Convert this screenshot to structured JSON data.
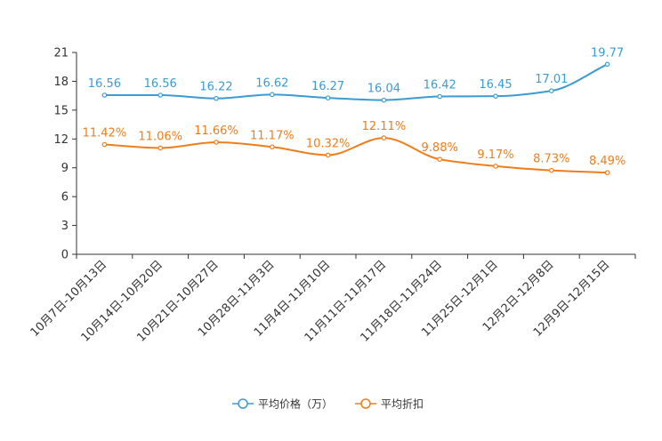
{
  "chart_data": {
    "type": "line",
    "title": "",
    "xlabel": "",
    "ylabel": "",
    "ylim": [
      0,
      21
    ],
    "yticks": [
      "0",
      "3",
      "6",
      "9",
      "12",
      "15",
      "18",
      "21"
    ],
    "categories": [
      "10月7日-10月13日",
      "10月14日-10月20日",
      "10月21日-10月27日",
      "10月28日-11月3日",
      "11月4日-11月10日",
      "11月11日-11月17日",
      "11月18日-11月24日",
      "11月25日-12月1日",
      "12月2日-12月8日",
      "12月9日-12月15日"
    ],
    "series": [
      {
        "name": "平均价格（万）",
        "color": "#3a9bd5",
        "values": [
          16.56,
          16.56,
          16.22,
          16.62,
          16.27,
          16.04,
          16.42,
          16.45,
          17.01,
          19.77
        ],
        "labels": [
          "16.56",
          "16.56",
          "16.22",
          "16.62",
          "16.27",
          "16.04",
          "16.42",
          "16.45",
          "17.01",
          "19.77"
        ]
      },
      {
        "name": "平均折扣",
        "color": "#f07d1a",
        "values": [
          11.42,
          11.06,
          11.66,
          11.17,
          10.32,
          12.11,
          9.88,
          9.17,
          8.73,
          8.49
        ],
        "labels": [
          "11.42%",
          "11.06%",
          "11.66%",
          "11.17%",
          "10.32%",
          "12.11%",
          "9.88%",
          "9.17%",
          "8.73%",
          "8.49%"
        ]
      }
    ],
    "legend_position": "bottom-center",
    "grid": false
  }
}
